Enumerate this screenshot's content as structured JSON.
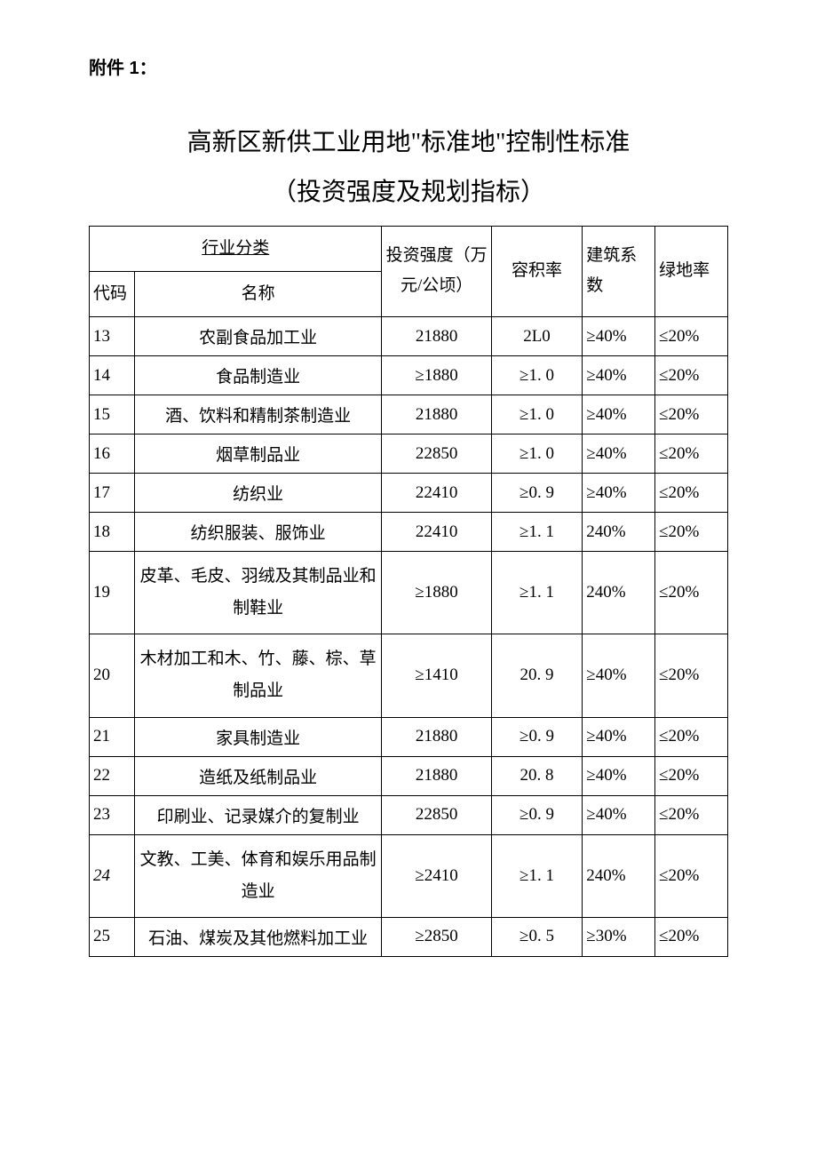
{
  "attachment_label": "附件 1：",
  "title": "高新区新供工业用地\"标准地\"控制性标准",
  "subtitle": "（投资强度及规划指标）",
  "table": {
    "headers": {
      "category": "行业分类",
      "code": "代码",
      "name": "名称",
      "investment": "投资强度（万元/公顷）",
      "floor_ratio": "容积率",
      "building_coef": "建筑系数",
      "green_ratio": "绿地率"
    },
    "columns": [
      "代码",
      "名称",
      "投资强度（万元/公顷）",
      "容积率",
      "建筑系数",
      "绿地率"
    ],
    "rows": [
      {
        "code": "13",
        "name": "农副食品加工业",
        "investment": "21880",
        "floor_ratio": "2L0",
        "building_coef": "≥40%",
        "green_ratio": "≤20%"
      },
      {
        "code": "14",
        "name": "食品制造业",
        "investment": "≥1880",
        "floor_ratio": "≥1. 0",
        "building_coef": "≥40%",
        "green_ratio": "≤20%"
      },
      {
        "code": "15",
        "name": "酒、饮料和精制茶制造业",
        "investment": "21880",
        "floor_ratio": "≥1. 0",
        "building_coef": "≥40%",
        "green_ratio": "≤20%"
      },
      {
        "code": "16",
        "name": "烟草制品业",
        "investment": "22850",
        "floor_ratio": "≥1. 0",
        "building_coef": "≥40%",
        "green_ratio": "≤20%"
      },
      {
        "code": "17",
        "name": "纺织业",
        "investment": "22410",
        "floor_ratio": "≥0. 9",
        "building_coef": "≥40%",
        "green_ratio": "≤20%"
      },
      {
        "code": "18",
        "name": "纺织服装、服饰业",
        "investment": "22410",
        "floor_ratio": "≥1. 1",
        "building_coef": "240%",
        "green_ratio": "≤20%"
      },
      {
        "code": "19",
        "name": "皮革、毛皮、羽绒及其制品业和制鞋业",
        "investment": "≥1880",
        "floor_ratio": "≥1. 1",
        "building_coef": "240%",
        "green_ratio": "≤20%"
      },
      {
        "code": "20",
        "name": "木材加工和木、竹、藤、棕、草制品业",
        "investment": "≥1410",
        "floor_ratio": "20. 9",
        "building_coef": "≥40%",
        "green_ratio": "≤20%"
      },
      {
        "code": "21",
        "name": "家具制造业",
        "investment": "21880",
        "floor_ratio": "≥0. 9",
        "building_coef": "≥40%",
        "green_ratio": "≤20%"
      },
      {
        "code": "22",
        "name": "造纸及纸制品业",
        "investment": "21880",
        "floor_ratio": "20. 8",
        "building_coef": "≥40%",
        "green_ratio": "≤20%"
      },
      {
        "code": "23",
        "name": "印刷业、记录媒介的复制业",
        "investment": "22850",
        "floor_ratio": "≥0. 9",
        "building_coef": "≥40%",
        "green_ratio": "≤20%"
      },
      {
        "code": "24",
        "name": "文教、工美、体育和娱乐用品制造业",
        "investment": "≥2410",
        "floor_ratio": "≥1. 1",
        "building_coef": "240%",
        "green_ratio": "≤20%",
        "italic_code": true
      },
      {
        "code": "25",
        "name": "石油、煤炭及其他燃料加工业",
        "investment": "≥2850",
        "floor_ratio": "≥0. 5",
        "building_coef": "≥30%",
        "green_ratio": "≤20%"
      }
    ]
  },
  "styling": {
    "background_color": "#ffffff",
    "text_color": "#000000",
    "border_color": "#000000",
    "title_fontsize": 28,
    "body_fontsize": 19,
    "label_fontsize": 20,
    "font_family_body": "SimSun",
    "font_family_label": "SimHei"
  }
}
